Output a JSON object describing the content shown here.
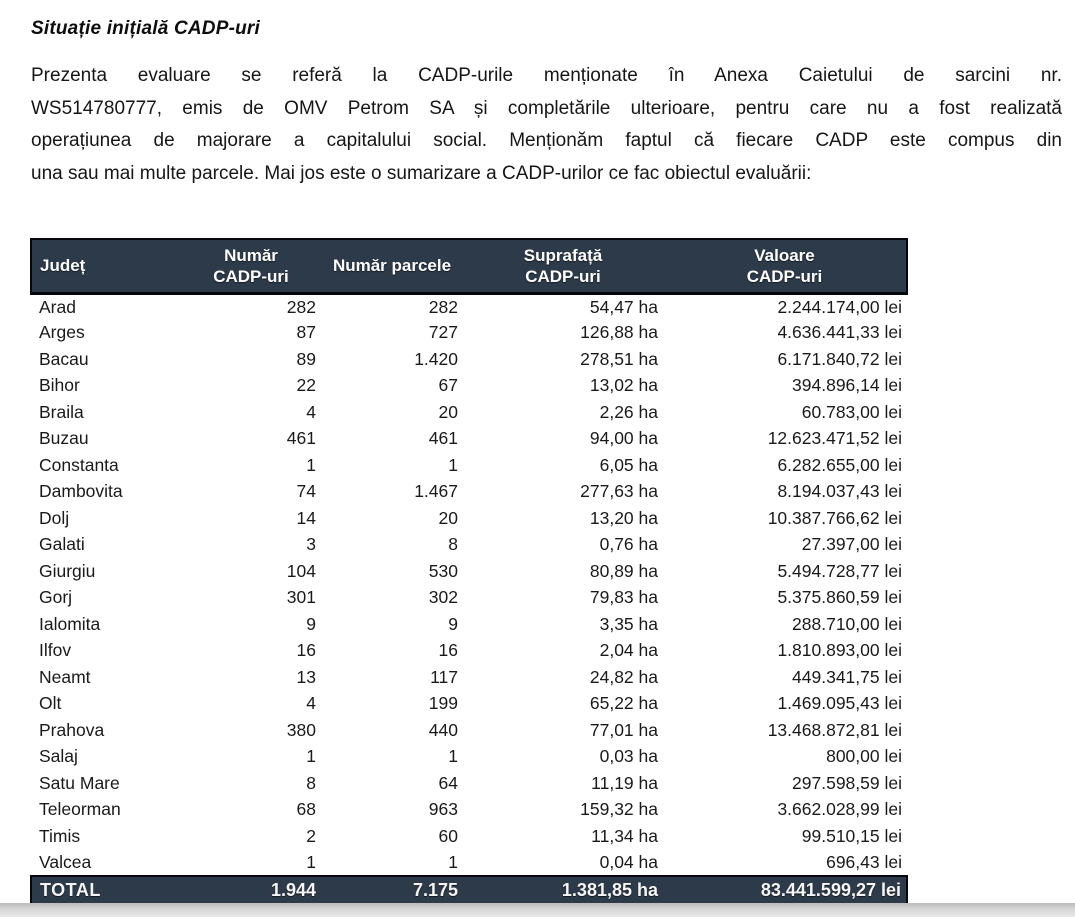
{
  "page": {
    "title": "Situație inițială CADP-uri",
    "paragraph_lines": [
      "Prezenta evaluare se referă la CADP-urile menționate în Anexa Caietului de sarcini nr.",
      "WS514780777, emis de OMV Petrom SA și completările ulterioare, pentru care nu a fost realizată",
      "operațiunea de majorare a capitalului social. Menționăm faptul că fiecare CADP este compus din",
      "una sau mai multe parcele. Mai jos este o sumarizare a CADP-urilor ce fac obiectul evaluării:"
    ]
  },
  "table": {
    "columns": [
      {
        "key": "judet",
        "label": "Județ"
      },
      {
        "key": "numar_cadp",
        "label": "Număr\nCADP-uri"
      },
      {
        "key": "numar_parcele",
        "label": "Număr parcele"
      },
      {
        "key": "suprafata",
        "label": "Suprafață\nCADP-uri"
      },
      {
        "key": "valoare",
        "label": "Valoare\nCADP-uri"
      }
    ],
    "rows": [
      [
        "Arad",
        "282",
        "282",
        "54,47 ha",
        "2.244.174,00 lei"
      ],
      [
        "Arges",
        "87",
        "727",
        "126,88 ha",
        "4.636.441,33 lei"
      ],
      [
        "Bacau",
        "89",
        "1.420",
        "278,51 ha",
        "6.171.840,72 lei"
      ],
      [
        "Bihor",
        "22",
        "67",
        "13,02 ha",
        "394.896,14 lei"
      ],
      [
        "Braila",
        "4",
        "20",
        "2,26 ha",
        "60.783,00 lei"
      ],
      [
        "Buzau",
        "461",
        "461",
        "94,00 ha",
        "12.623.471,52 lei"
      ],
      [
        "Constanta",
        "1",
        "1",
        "6,05 ha",
        "6.282.655,00 lei"
      ],
      [
        "Dambovita",
        "74",
        "1.467",
        "277,63 ha",
        "8.194.037,43 lei"
      ],
      [
        "Dolj",
        "14",
        "20",
        "13,20 ha",
        "10.387.766,62 lei"
      ],
      [
        "Galati",
        "3",
        "8",
        "0,76 ha",
        "27.397,00 lei"
      ],
      [
        "Giurgiu",
        "104",
        "530",
        "80,89 ha",
        "5.494.728,77 lei"
      ],
      [
        "Gorj",
        "301",
        "302",
        "79,83 ha",
        "5.375.860,59 lei"
      ],
      [
        "Ialomita",
        "9",
        "9",
        "3,35 ha",
        "288.710,00 lei"
      ],
      [
        "Ilfov",
        "16",
        "16",
        "2,04 ha",
        "1.810.893,00 lei"
      ],
      [
        "Neamt",
        "13",
        "117",
        "24,82 ha",
        "449.341,75 lei"
      ],
      [
        "Olt",
        "4",
        "199",
        "65,22 ha",
        "1.469.095,43 lei"
      ],
      [
        "Prahova",
        "380",
        "440",
        "77,01 ha",
        "13.468.872,81 lei"
      ],
      [
        "Salaj",
        "1",
        "1",
        "0,03 ha",
        "800,00 lei"
      ],
      [
        "Satu Mare",
        "8",
        "64",
        "11,19 ha",
        "297.598,59 lei"
      ],
      [
        "Teleorman",
        "68",
        "963",
        "159,32 ha",
        "3.662.028,99 lei"
      ],
      [
        "Timis",
        "2",
        "60",
        "11,34 ha",
        "99.510,15 lei"
      ],
      [
        "Valcea",
        "1",
        "1",
        "0,04 ha",
        "696,43 lei"
      ]
    ],
    "total": [
      "TOTAL",
      "1.944",
      "7.175",
      "1.381,85 ha",
      "83.441.599,27 lei"
    ]
  },
  "colors": {
    "header_bg": "#2d3a49",
    "header_text": "#ffffff",
    "body_text": "#1a1a1a",
    "border": "#05070c",
    "page_bg": "#ffffff",
    "bottom_strip": "#d6d6d6"
  }
}
